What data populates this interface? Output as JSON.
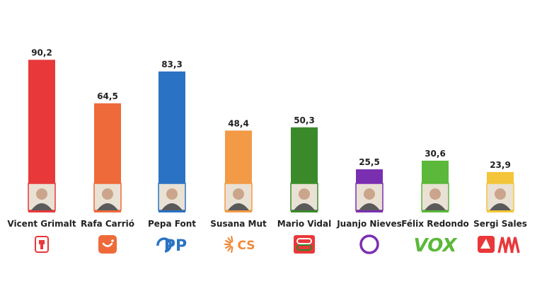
{
  "chart_data": {
    "type": "bar",
    "categories": [
      "Vicent Grimalt",
      "Rafa Carrió",
      "Pepa Font",
      "Susana Mut",
      "Mario Vidal",
      "Juanjo Nieves",
      "Félix Redondo",
      "Sergi Sales"
    ],
    "values": [
      90.2,
      64.5,
      83.3,
      48.4,
      50.3,
      25.5,
      30.6,
      23.9
    ],
    "value_labels": [
      "90,2",
      "64,5",
      "83,3",
      "48,4",
      "50,3",
      "25,5",
      "30,6",
      "23,9"
    ],
    "colors": [
      "#e8383a",
      "#ef6a3a",
      "#2a73c4",
      "#f39a46",
      "#3a8a2a",
      "#7a2fb0",
      "#5bb83a",
      "#f4c53a"
    ],
    "ylim": [
      0,
      100
    ],
    "grid": false,
    "title": "",
    "xlabel": "",
    "ylabel": ""
  },
  "candidate_photos": [
    "portrait-vicent-grimalt",
    "portrait-rafa-carrio",
    "portrait-pepa-font",
    "portrait-susana-mut",
    "portrait-mario-vidal",
    "portrait-juanjo-nieves",
    "portrait-felix-redondo",
    "portrait-sergi-sales"
  ],
  "party_logos": [
    {
      "icon": "psoe-rose-icon",
      "text": "",
      "color": "#e8383a"
    },
    {
      "icon": "mes-smile-icon",
      "text": "",
      "color": "#ef6a3a"
    },
    {
      "icon": "pp-logo-icon",
      "text": "PP",
      "color": "#2a73c4"
    },
    {
      "icon": "cs-logo-icon",
      "text": "CS",
      "color": "#f08a3a"
    },
    {
      "icon": "el-pi-logo-icon",
      "text": "",
      "color": "#e8383a"
    },
    {
      "icon": "podemos-circle-icon",
      "text": "",
      "color": "#7a2fb0"
    },
    {
      "icon": "vox-logo-icon",
      "text": "VOX",
      "color": "#5bb83a"
    },
    {
      "icon": "eu-erc-logo-icon",
      "text": "",
      "color": "#e8383a"
    }
  ]
}
